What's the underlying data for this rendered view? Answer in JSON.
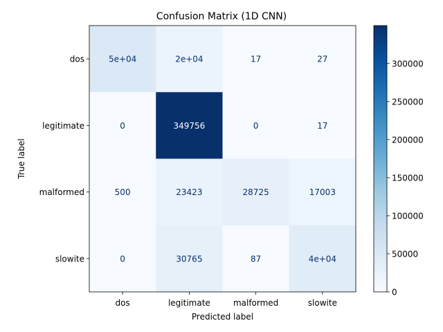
{
  "chart_data": {
    "type": "heatmap",
    "title": "Confusion Matrix (1D CNN)",
    "xlabel": "Predicted label",
    "ylabel": "True label",
    "x_categories": [
      "dos",
      "legitimate",
      "malformed",
      "slowite"
    ],
    "y_categories": [
      "dos",
      "legitimate",
      "malformed",
      "slowite"
    ],
    "values": [
      [
        50000,
        20000,
        17,
        27
      ],
      [
        0,
        349756,
        0,
        17
      ],
      [
        500,
        23423,
        28725,
        17003
      ],
      [
        0,
        30765,
        87,
        40000
      ]
    ],
    "cell_labels": [
      [
        "5e+04",
        "2e+04",
        "17",
        "27"
      ],
      [
        "0",
        "349756",
        "0",
        "17"
      ],
      [
        "500",
        "23423",
        "28725",
        "17003"
      ],
      [
        "0",
        "30765",
        "87",
        "4e+04"
      ]
    ],
    "colormap": "Blues",
    "colorbar": {
      "range": [
        0,
        349756
      ],
      "ticks": [
        0,
        50000,
        100000,
        150000,
        200000,
        250000,
        300000
      ],
      "tick_labels": [
        "0",
        "50000",
        "100000",
        "150000",
        "200000",
        "250000",
        "300000"
      ]
    }
  }
}
